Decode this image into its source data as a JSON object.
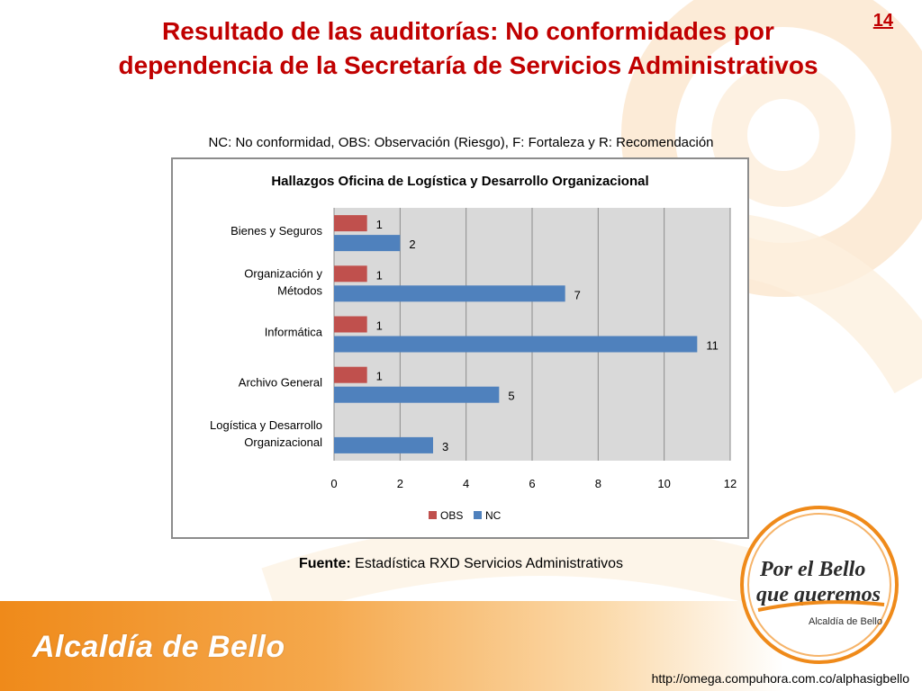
{
  "slide": {
    "title_line1": "Resultado de las auditorías: No conformidades por",
    "title_line2": "dependencia de la Secretaría de Servicios Administrativos",
    "number": "14",
    "legend_note": "NC: No conformidad, OBS: Observación (Riesgo), F: Fortaleza y R: Recomendación",
    "source_label": "Fuente:",
    "source_text": " Estadística RXD Servicios Administrativos",
    "footer_logo": "Alcaldía de Bello",
    "stamp_line1": "Por el Bello",
    "stamp_line2": "que queremos",
    "stamp_line3": "Alcaldía de Bello",
    "url": "http://omega.compuhora.com.co/alphasigbello"
  },
  "colors": {
    "title": "#c00000",
    "obs": "#c0504d",
    "nc": "#4f81bd",
    "plot_bg": "#d9d9d9",
    "footer_orange": "#ef8a1a"
  },
  "chart_data": {
    "type": "bar",
    "orientation": "horizontal",
    "title": "Hallazgos Oficina de Logística y Desarrollo Organizacional",
    "categories": [
      [
        "Bienes y Seguros"
      ],
      [
        "Organización y",
        "Métodos"
      ],
      [
        "Informática"
      ],
      [
        "Archivo General"
      ],
      [
        "Logística y Desarrollo",
        "Organizacional"
      ]
    ],
    "series": [
      {
        "name": "OBS",
        "values": [
          1,
          1,
          1,
          1,
          null
        ]
      },
      {
        "name": "NC",
        "values": [
          2,
          7,
          11,
          5,
          3
        ]
      }
    ],
    "xlim": [
      0,
      12
    ],
    "xticks": [
      0,
      2,
      4,
      6,
      8,
      10,
      12
    ],
    "grid": true,
    "legend": "bottom"
  }
}
